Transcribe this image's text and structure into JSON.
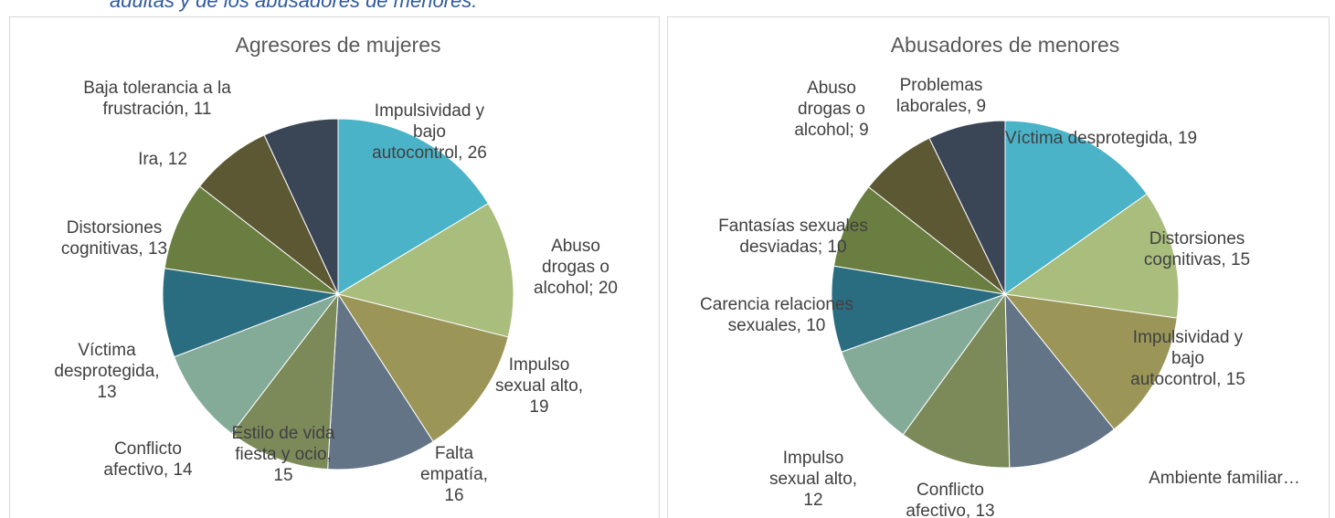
{
  "caption": "adultas y de los abusadores de menores.",
  "chart_data": [
    {
      "type": "pie",
      "title": "Agresores de mujeres",
      "labels": [
        "Impulsividad y bajo autocontrol, 26",
        "Abuso drogas o alcohol; 20",
        "Impulso sexual alto, 19",
        "Falta empatía, 16",
        "Estilo de vida fiesta y ocio, 15",
        "Conflicto afectivo, 14",
        "Víctima desprotegida, 13",
        "Distorsiones cognitivas, 13",
        "Ira, 12",
        "Baja tolerancia a la frustración, 11"
      ],
      "values": [
        26,
        20,
        19,
        16,
        15,
        14,
        13,
        13,
        12,
        11
      ],
      "colors": [
        "#4bb3c8",
        "#a9bd7d",
        "#9b9658",
        "#637487",
        "#7c8a5a",
        "#84ab98",
        "#2a6d80",
        "#6a7e41",
        "#5d5834",
        "#3a4556"
      ]
    },
    {
      "type": "pie",
      "title": "Abusadores de menores",
      "labels": [
        "Víctima desprotegida, 19",
        "Distorsiones cognitivas, 15",
        "Impulsividad y bajo autocontrol, 15",
        "Ambiente familiar…",
        "Conflicto afectivo, 13",
        "Impulso sexual alto, 12",
        "Carencia relaciones sexuales, 10",
        "Fantasías sexuales desviadas; 10",
        "Abuso drogas o alcohol; 9",
        "Problemas laborales, 9"
      ],
      "values": [
        19,
        15,
        15,
        13,
        13,
        12,
        10,
        10,
        9,
        9
      ],
      "colors": [
        "#4bb3c8",
        "#a9bd7d",
        "#9b9658",
        "#637487",
        "#7c8a5a",
        "#84ab98",
        "#2a6d80",
        "#6a7e41",
        "#5d5834",
        "#3a4556"
      ]
    }
  ]
}
